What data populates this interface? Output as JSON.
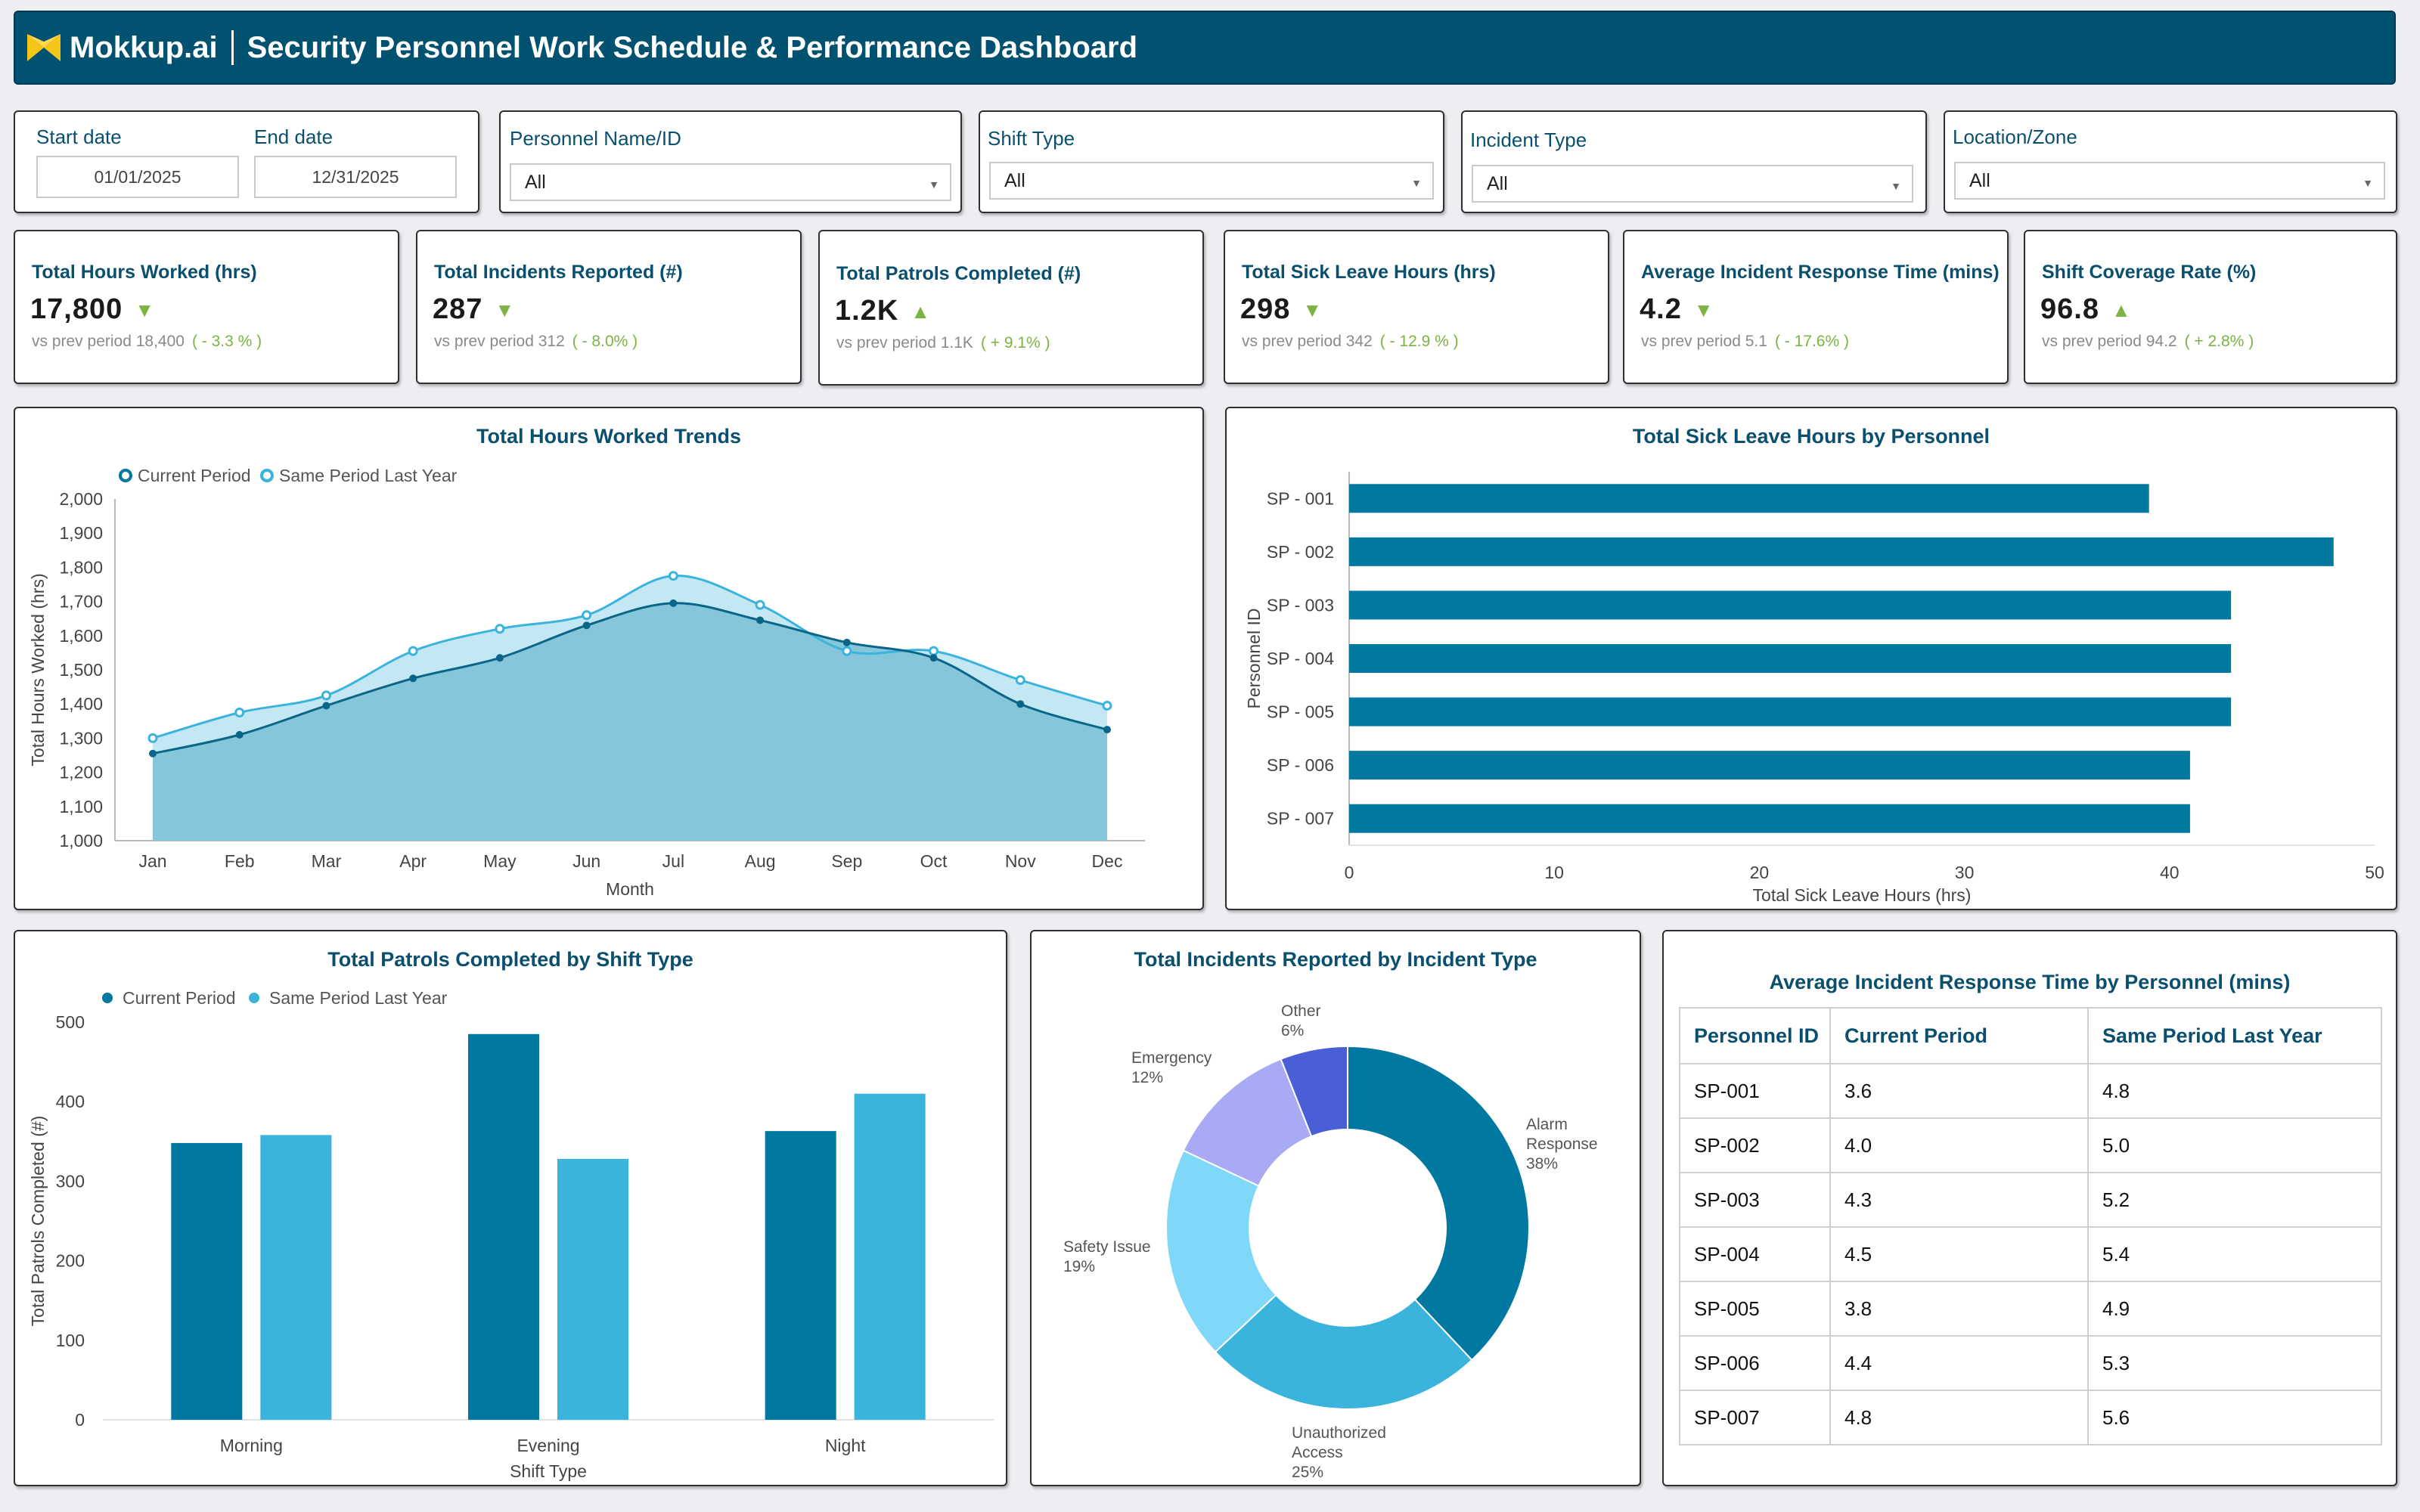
{
  "header": {
    "brand": "Mokkup.ai",
    "title": "Security Personnel Work Schedule & Performance Dashboard"
  },
  "filters": {
    "start_label": "Start date",
    "start_value": "01/01/2025",
    "end_label": "End date",
    "end_value": "12/31/2025",
    "personnel": {
      "label": "Personnel Name/ID",
      "value": "All"
    },
    "shift": {
      "label": "Shift Type",
      "value": "All"
    },
    "incident": {
      "label": "Incident Type",
      "value": "All"
    },
    "location": {
      "label": "Location/Zone",
      "value": "All"
    }
  },
  "kpis": [
    {
      "title": "Total Hours Worked (hrs)",
      "value": "17,800",
      "arrow": "▼",
      "prev": "vs prev period 18,400",
      "change": "( - 3.3 % )"
    },
    {
      "title": "Total Incidents Reported (#)",
      "value": "287",
      "arrow": "▼",
      "prev": "vs prev period 312",
      "change": "( - 8.0% )"
    },
    {
      "title": "Total Patrols Completed (#)",
      "value": "1.2K",
      "arrow": "▲",
      "prev": "vs prev period 1.1K",
      "change": "( + 9.1% )"
    },
    {
      "title": "Total Sick Leave Hours (hrs)",
      "value": "298",
      "arrow": "▼",
      "prev": "vs prev period 342",
      "change": "( - 12.9 % )"
    },
    {
      "title": "Average Incident Response Time (mins)",
      "value": "4.2",
      "arrow": "▼",
      "prev": "vs prev period 5.1",
      "change": "( - 17.6% )"
    },
    {
      "title": "Shift Coverage Rate (%)",
      "value": "96.8",
      "arrow": "▲",
      "prev": "vs prev period 94.2",
      "change": "( + 2.8% )"
    }
  ],
  "colors": {
    "primary": "#00789f",
    "secondary": "#3ab4dc",
    "header": "#005270",
    "positive": "#7cb342"
  },
  "chart_data": [
    {
      "type": "area",
      "title": "Total Hours Worked Trends",
      "xlabel": "Month",
      "ylabel": "Total Hours Worked (hrs)",
      "categories": [
        "Jan",
        "Feb",
        "Mar",
        "Apr",
        "May",
        "Jun",
        "Jul",
        "Aug",
        "Sep",
        "Oct",
        "Nov",
        "Dec"
      ],
      "ylim": [
        1000,
        2000
      ],
      "yticks": [
        "1,000",
        "1,100",
        "1,200",
        "1,300",
        "1,400",
        "1,500",
        "1,600",
        "1,700",
        "1,800",
        "1,900",
        "2,000"
      ],
      "series": [
        {
          "name": "Current Period",
          "values": [
            1255,
            1310,
            1395,
            1475,
            1535,
            1630,
            1695,
            1645,
            1580,
            1535,
            1400,
            1325
          ]
        },
        {
          "name": "Same Period Last Year",
          "values": [
            1300,
            1375,
            1425,
            1555,
            1620,
            1660,
            1775,
            1690,
            1555,
            1555,
            1470,
            1395
          ]
        }
      ],
      "legend": "top-left"
    },
    {
      "type": "bar",
      "orientation": "horizontal",
      "title": "Total Sick Leave Hours by Personnel",
      "xlabel": "Total Sick Leave Hours (hrs)",
      "ylabel": "Personnel ID",
      "categories": [
        "SP - 001",
        "SP - 002",
        "SP - 003",
        "SP - 004",
        "SP - 005",
        "SP - 006",
        "SP - 007"
      ],
      "values": [
        39,
        48,
        43,
        43,
        43,
        41,
        41
      ],
      "xlim": [
        0,
        50
      ],
      "xticks": [
        "0",
        "10",
        "20",
        "30",
        "40",
        "50"
      ]
    },
    {
      "type": "bar",
      "title": "Total Patrols Completed by Shift Type",
      "xlabel": "Shift Type",
      "ylabel": "Total Patrols Completed (#)",
      "categories": [
        "Morning",
        "Evening",
        "Night"
      ],
      "ylim": [
        0,
        500
      ],
      "yticks": [
        "0",
        "100",
        "200",
        "300",
        "400",
        "500"
      ],
      "series": [
        {
          "name": "Current Period",
          "values": [
            348,
            485,
            363
          ]
        },
        {
          "name": "Same Period Last Year",
          "values": [
            358,
            328,
            410
          ]
        }
      ],
      "legend": "top-left"
    },
    {
      "type": "pie",
      "donut": true,
      "title": "Total Incidents Reported by Incident Type",
      "slices": [
        {
          "label": "Alarm Response",
          "pct": "38%",
          "value": 38,
          "color": "#00789f"
        },
        {
          "label": "Unauthorized Access",
          "pct": "25%",
          "value": 25,
          "color": "#3ab4dc"
        },
        {
          "label": "Safety Issue",
          "pct": "19%",
          "value": 19,
          "color": "#7fd8f7"
        },
        {
          "label": "Emergency",
          "pct": "12%",
          "value": 12,
          "color": "#a8aaf5"
        },
        {
          "label": "Other",
          "pct": "6%",
          "value": 6,
          "color": "#4a5fd6"
        }
      ]
    },
    {
      "type": "table",
      "title": "Average Incident Response Time by Personnel (mins)",
      "columns": [
        "Personnel ID",
        "Current Period",
        "Same Period Last Year"
      ],
      "rows": [
        [
          "SP-001",
          "3.6",
          "4.8"
        ],
        [
          "SP-002",
          "4.0",
          "5.0"
        ],
        [
          "SP-003",
          "4.3",
          "5.2"
        ],
        [
          "SP-004",
          "4.5",
          "5.4"
        ],
        [
          "SP-005",
          "3.8",
          "4.9"
        ],
        [
          "SP-006",
          "4.4",
          "5.3"
        ],
        [
          "SP-007",
          "4.8",
          "5.6"
        ]
      ]
    }
  ]
}
